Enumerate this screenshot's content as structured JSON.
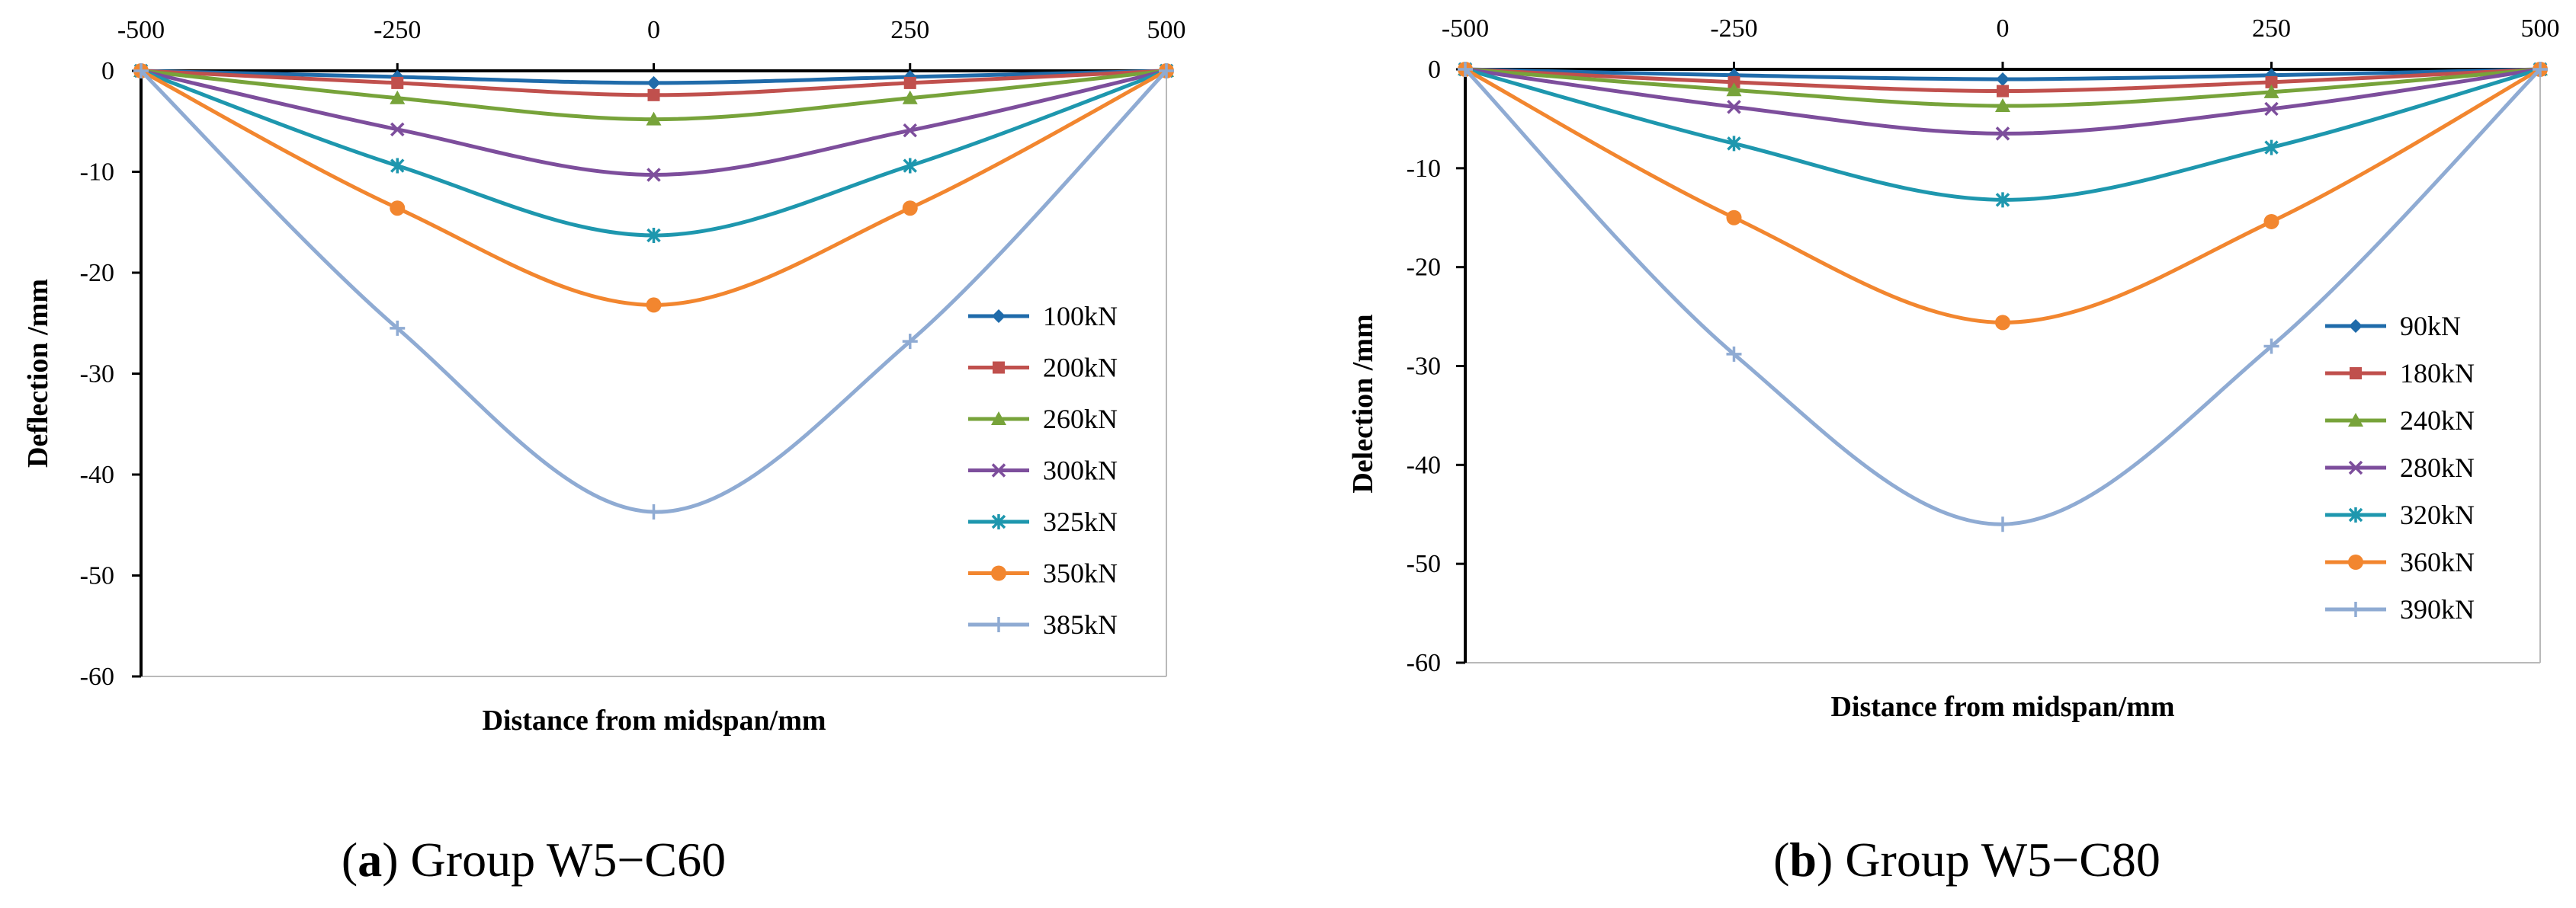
{
  "figure": {
    "captions": [
      {
        "open": "(",
        "letter": "a",
        "rest": ") Group W5−C60"
      },
      {
        "open": "(",
        "letter": "b",
        "rest": ") Group W5−C80"
      }
    ]
  },
  "chart_data": [
    {
      "type": "line",
      "title": "",
      "xlabel": "Distance from midspan/mm",
      "ylabel": "Deflection /mm",
      "x": [
        -500,
        -250,
        0,
        250,
        500
      ],
      "xticks": [
        -500,
        -250,
        0,
        250,
        500
      ],
      "xtick_labels": [
        "-500",
        "-250",
        "0",
        "250",
        "500"
      ],
      "xlim": [
        -500,
        500
      ],
      "yticks": [
        0,
        -10,
        -20,
        -30,
        -40,
        -50,
        -60
      ],
      "ytick_labels": [
        "0",
        "-10",
        "-20",
        "-30",
        "-40",
        "-50",
        "-60"
      ],
      "ylim": [
        -60,
        0
      ],
      "grid": false,
      "legend_position": "right",
      "series": [
        {
          "name": "100kN",
          "values": [
            0,
            -0.6,
            -1.2,
            -0.6,
            0
          ],
          "color": "#1F6BAA",
          "marker": "diamond"
        },
        {
          "name": "200kN",
          "values": [
            0,
            -1.2,
            -2.4,
            -1.2,
            0
          ],
          "color": "#C0504D",
          "marker": "square"
        },
        {
          "name": "260kN",
          "values": [
            0,
            -2.7,
            -4.8,
            -2.7,
            0
          ],
          "color": "#77A33A",
          "marker": "triangle"
        },
        {
          "name": "300kN",
          "values": [
            0,
            -5.8,
            -10.3,
            -5.9,
            0
          ],
          "color": "#7D4E9C",
          "marker": "x"
        },
        {
          "name": "325kN",
          "values": [
            0,
            -9.4,
            -16.3,
            -9.4,
            0
          ],
          "color": "#1E97AE",
          "marker": "star"
        },
        {
          "name": "350kN",
          "values": [
            0,
            -13.6,
            -23.2,
            -13.6,
            0
          ],
          "color": "#F2862F",
          "marker": "circle"
        },
        {
          "name": "385kN",
          "values": [
            0,
            -25.5,
            -43.7,
            -26.8,
            0
          ],
          "color": "#8FABD3",
          "marker": "plus"
        }
      ]
    },
    {
      "type": "line",
      "title": "",
      "xlabel": "Distance from midspan/mm",
      "ylabel": "Delection /mm",
      "x": [
        -500,
        -250,
        0,
        250,
        500
      ],
      "xticks": [
        -500,
        -250,
        0,
        250,
        500
      ],
      "xtick_labels": [
        "-500",
        "-250",
        "0",
        "250",
        "500"
      ],
      "xlim": [
        -500,
        500
      ],
      "yticks": [
        0,
        -10,
        -20,
        -30,
        -40,
        -50,
        -60
      ],
      "ytick_labels": [
        "0",
        "-10",
        "-20",
        "-30",
        "-40",
        "-50",
        "-60"
      ],
      "ylim": [
        -60,
        0
      ],
      "grid": false,
      "legend_position": "right",
      "series": [
        {
          "name": "90kN",
          "values": [
            0,
            -0.6,
            -1.0,
            -0.6,
            0
          ],
          "color": "#1F6BAA",
          "marker": "diamond"
        },
        {
          "name": "180kN",
          "values": [
            0,
            -1.3,
            -2.2,
            -1.3,
            0
          ],
          "color": "#C0504D",
          "marker": "square"
        },
        {
          "name": "240kN",
          "values": [
            0,
            -2.1,
            -3.7,
            -2.3,
            0
          ],
          "color": "#77A33A",
          "marker": "triangle"
        },
        {
          "name": "280kN",
          "values": [
            0,
            -3.8,
            -6.5,
            -4.0,
            0
          ],
          "color": "#7D4E9C",
          "marker": "x"
        },
        {
          "name": "320kN",
          "values": [
            0,
            -7.5,
            -13.2,
            -7.9,
            0
          ],
          "color": "#1E97AE",
          "marker": "star"
        },
        {
          "name": "360kN",
          "values": [
            0,
            -15.0,
            -25.6,
            -15.4,
            0
          ],
          "color": "#F2862F",
          "marker": "circle"
        },
        {
          "name": "390kN",
          "values": [
            0,
            -28.8,
            -46.0,
            -28.0,
            0
          ],
          "color": "#8FABD3",
          "marker": "plus"
        }
      ]
    }
  ]
}
